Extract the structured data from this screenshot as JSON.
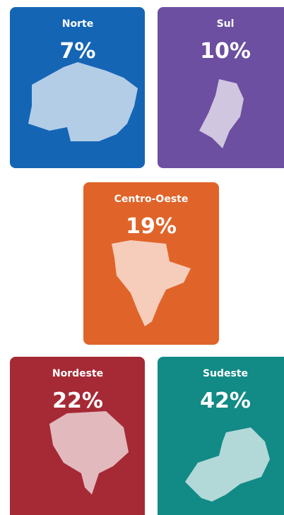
{
  "chart_data": {
    "type": "cards",
    "categories": [
      "Norte",
      "Sul",
      "Centro-Oeste",
      "Nordeste",
      "Sudeste"
    ],
    "values": [
      7,
      10,
      19,
      22,
      42
    ],
    "value_labels": [
      "7%",
      "10%",
      "19%",
      "22%",
      "42%"
    ],
    "colors": [
      "#1565b5",
      "#6c4fa0",
      "#e0642a",
      "#a52a35",
      "#128a86"
    ]
  }
}
